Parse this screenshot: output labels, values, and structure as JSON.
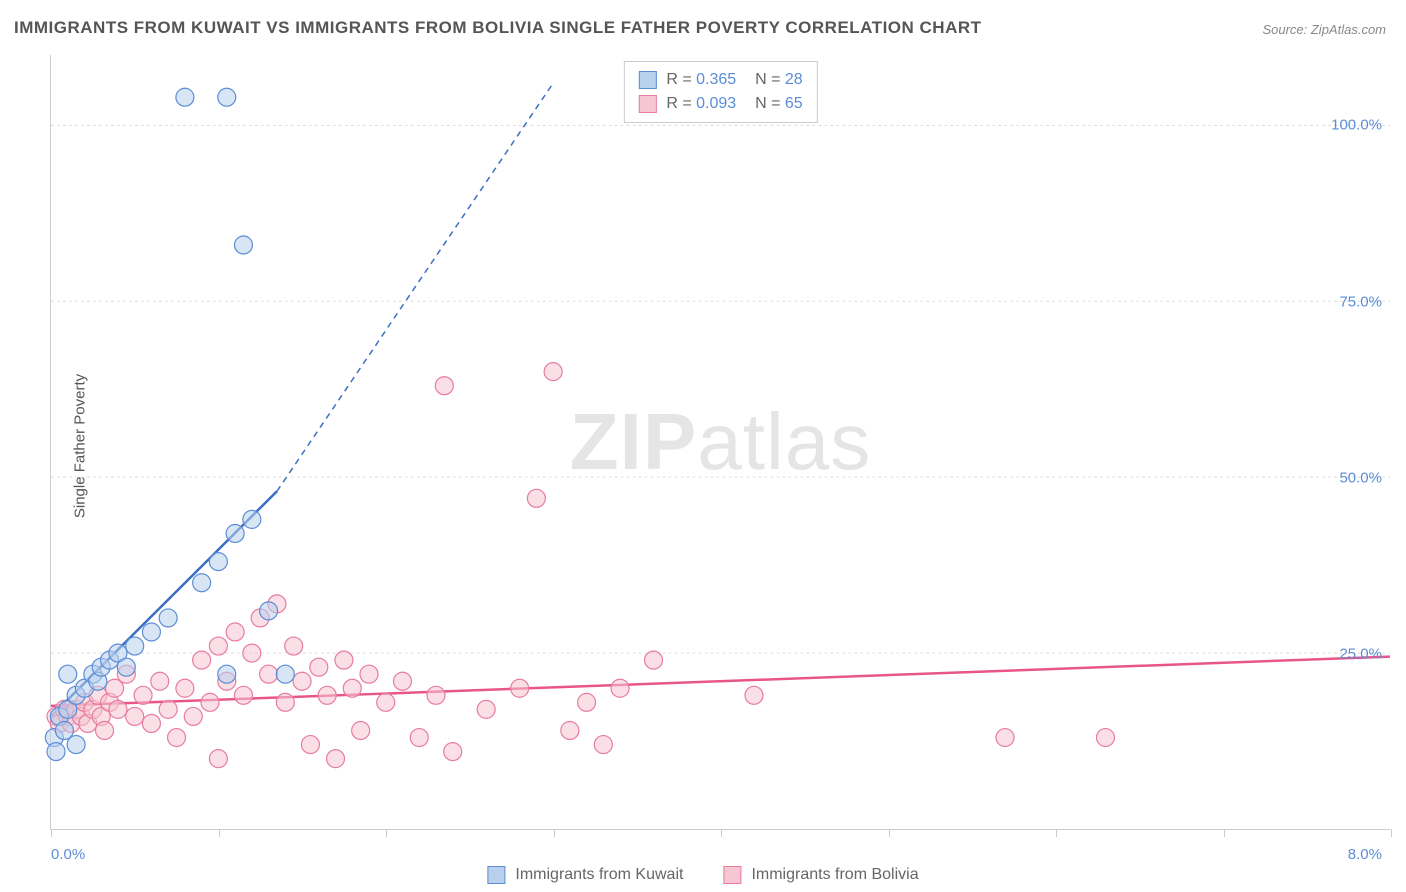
{
  "title": "IMMIGRANTS FROM KUWAIT VS IMMIGRANTS FROM BOLIVIA SINGLE FATHER POVERTY CORRELATION CHART",
  "source": "Source: ZipAtlas.com",
  "ylabel": "Single Father Poverty",
  "watermark_bold": "ZIP",
  "watermark_light": "atlas",
  "chart": {
    "type": "scatter",
    "xlim": [
      0,
      8
    ],
    "ylim": [
      0,
      110
    ],
    "xtick_labels": {
      "left": "0.0%",
      "right": "8.0%"
    },
    "xtick_positions": [
      0,
      1,
      2,
      3,
      4,
      5,
      6,
      7,
      8
    ],
    "ytick_labels": [
      "25.0%",
      "50.0%",
      "75.0%",
      "100.0%"
    ],
    "ytick_values": [
      25,
      50,
      75,
      100
    ],
    "gridline_color": "#dddddd",
    "axis_color": "#cccccc",
    "background_color": "#ffffff",
    "label_fontsize": 15,
    "tick_color": "#5b8dd6",
    "series": [
      {
        "name": "Immigrants from Kuwait",
        "color_fill": "#b8d0ec",
        "color_stroke": "#5b8dd6",
        "fill_opacity": 0.55,
        "marker_radius": 9,
        "R": "0.365",
        "N": "28",
        "trend": {
          "x1": 0.0,
          "y1": 16,
          "x2": 1.35,
          "y2": 48,
          "extend_x2": 3.0,
          "extend_y2": 106,
          "stroke": "#3a6fc4",
          "width": 2,
          "dash_solid_until": 1.35
        },
        "points": [
          [
            0.02,
            13
          ],
          [
            0.05,
            16
          ],
          [
            0.08,
            14
          ],
          [
            0.03,
            11
          ],
          [
            0.1,
            17
          ],
          [
            0.15,
            19
          ],
          [
            0.2,
            20
          ],
          [
            0.25,
            22
          ],
          [
            0.28,
            21
          ],
          [
            0.3,
            23
          ],
          [
            0.35,
            24
          ],
          [
            0.4,
            25
          ],
          [
            0.45,
            23
          ],
          [
            0.1,
            22
          ],
          [
            0.5,
            26
          ],
          [
            0.6,
            28
          ],
          [
            0.7,
            30
          ],
          [
            0.9,
            35
          ],
          [
            1.0,
            38
          ],
          [
            1.1,
            42
          ],
          [
            1.2,
            44
          ],
          [
            1.3,
            31
          ],
          [
            1.05,
            22
          ],
          [
            1.4,
            22
          ],
          [
            0.8,
            104
          ],
          [
            1.05,
            104
          ],
          [
            1.15,
            83
          ],
          [
            0.15,
            12
          ]
        ]
      },
      {
        "name": "Immigrants from Bolivia",
        "color_fill": "#f6c6d2",
        "color_stroke": "#e87ba0",
        "fill_opacity": 0.55,
        "marker_radius": 9,
        "R": "0.093",
        "N": "65",
        "trend": {
          "x1": 0.0,
          "y1": 17.5,
          "x2": 8.0,
          "y2": 24.5,
          "stroke": "#e64f8a",
          "width": 2
        },
        "points": [
          [
            0.03,
            16
          ],
          [
            0.05,
            15
          ],
          [
            0.08,
            17
          ],
          [
            0.1,
            16
          ],
          [
            0.12,
            15
          ],
          [
            0.15,
            17
          ],
          [
            0.18,
            16
          ],
          [
            0.2,
            18
          ],
          [
            0.22,
            15
          ],
          [
            0.25,
            17
          ],
          [
            0.28,
            19
          ],
          [
            0.3,
            16
          ],
          [
            0.32,
            14
          ],
          [
            0.35,
            18
          ],
          [
            0.38,
            20
          ],
          [
            0.4,
            17
          ],
          [
            0.45,
            22
          ],
          [
            0.5,
            16
          ],
          [
            0.55,
            19
          ],
          [
            0.6,
            15
          ],
          [
            0.65,
            21
          ],
          [
            0.7,
            17
          ],
          [
            0.75,
            13
          ],
          [
            0.8,
            20
          ],
          [
            0.85,
            16
          ],
          [
            0.9,
            24
          ],
          [
            0.95,
            18
          ],
          [
            1.0,
            26
          ],
          [
            1.05,
            21
          ],
          [
            1.1,
            28
          ],
          [
            1.15,
            19
          ],
          [
            1.2,
            25
          ],
          [
            1.25,
            30
          ],
          [
            1.3,
            22
          ],
          [
            1.35,
            32
          ],
          [
            1.4,
            18
          ],
          [
            1.45,
            26
          ],
          [
            1.5,
            21
          ],
          [
            1.55,
            12
          ],
          [
            1.6,
            23
          ],
          [
            1.65,
            19
          ],
          [
            1.7,
            10
          ],
          [
            1.75,
            24
          ],
          [
            1.8,
            20
          ],
          [
            1.85,
            14
          ],
          [
            1.9,
            22
          ],
          [
            2.0,
            18
          ],
          [
            2.1,
            21
          ],
          [
            2.2,
            13
          ],
          [
            2.3,
            19
          ],
          [
            2.35,
            63
          ],
          [
            2.4,
            11
          ],
          [
            2.6,
            17
          ],
          [
            2.8,
            20
          ],
          [
            2.9,
            47
          ],
          [
            3.0,
            65
          ],
          [
            3.1,
            14
          ],
          [
            3.2,
            18
          ],
          [
            3.3,
            12
          ],
          [
            3.4,
            20
          ],
          [
            3.6,
            24
          ],
          [
            4.2,
            19
          ],
          [
            5.7,
            13
          ],
          [
            6.3,
            13
          ],
          [
            1.0,
            10
          ]
        ]
      }
    ]
  },
  "legend_bottom": [
    {
      "label": "Immigrants from Kuwait",
      "swatch": "blue"
    },
    {
      "label": "Immigrants from Bolivia",
      "swatch": "pink"
    }
  ]
}
